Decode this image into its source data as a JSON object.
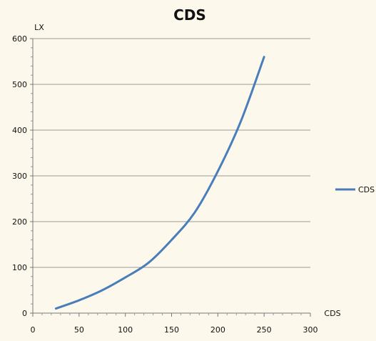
{
  "chart_data": {
    "type": "line",
    "title": "CDS",
    "xlabel": "CDS",
    "ylabel": "LX",
    "xlim": [
      0,
      300
    ],
    "ylim": [
      0,
      600
    ],
    "x_ticks": [
      0,
      50,
      100,
      150,
      200,
      250,
      300
    ],
    "y_ticks": [
      0,
      100,
      200,
      300,
      400,
      500,
      600
    ],
    "grid": "horizontal",
    "legend": "right",
    "series": [
      {
        "name": "CDS",
        "color": "#4a7ebb",
        "x": [
          25,
          50,
          75,
          100,
          125,
          150,
          175,
          200,
          225,
          250
        ],
        "y": [
          10,
          28,
          50,
          78,
          110,
          160,
          220,
          310,
          420,
          560
        ]
      }
    ]
  }
}
